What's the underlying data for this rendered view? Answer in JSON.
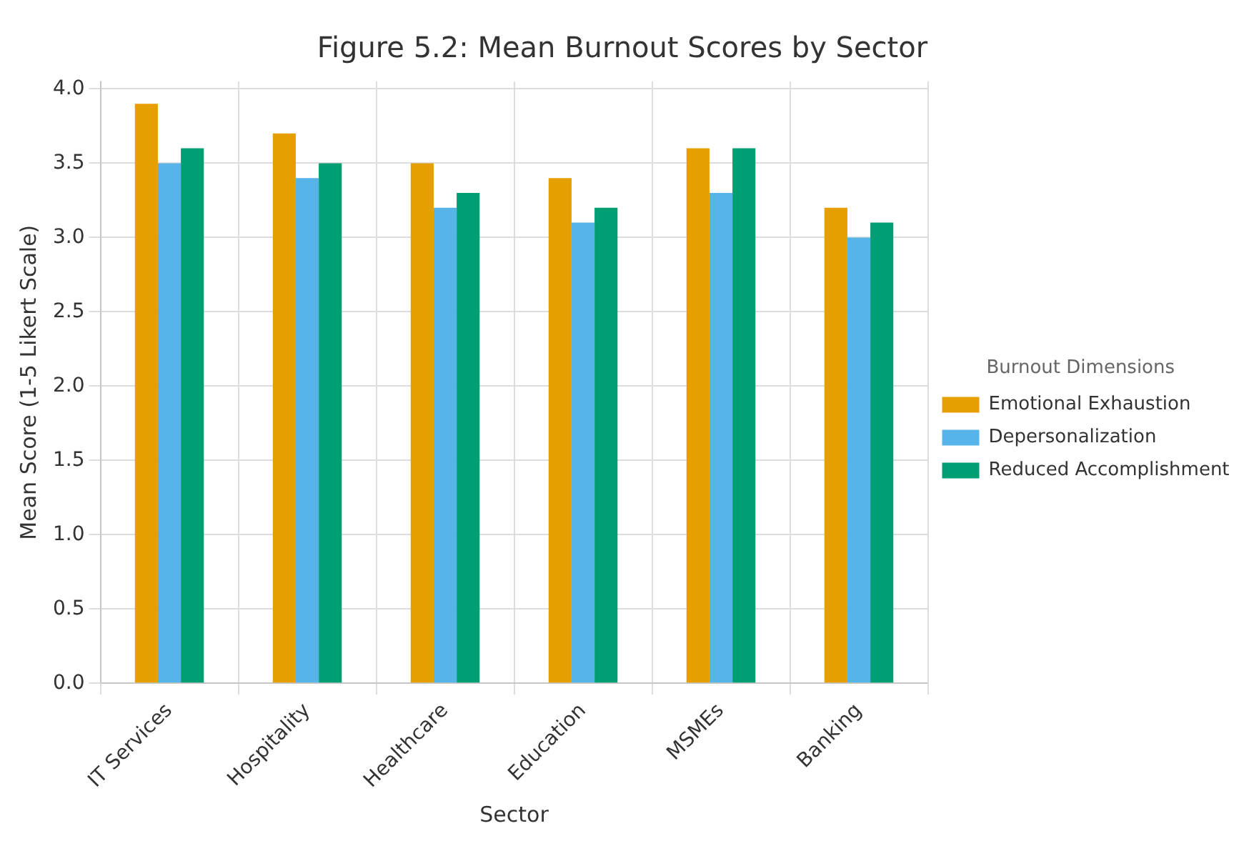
{
  "chart_data": {
    "type": "bar",
    "title": "Figure 5.2: Mean Burnout Scores by Sector",
    "xlabel": "Sector",
    "ylabel": "Mean Score (1-5 Likert Scale)",
    "legend_title": "Burnout Dimensions",
    "categories": [
      "IT Services",
      "Hospitality",
      "Healthcare",
      "Education",
      "MSMEs",
      "Banking"
    ],
    "series": [
      {
        "name": "Emotional Exhaustion",
        "color": "#e69f00",
        "values": [
          3.9,
          3.7,
          3.5,
          3.4,
          3.6,
          3.2
        ]
      },
      {
        "name": "Depersonalization",
        "color": "#56b4e9",
        "values": [
          3.5,
          3.4,
          3.2,
          3.1,
          3.3,
          3.0
        ]
      },
      {
        "name": "Reduced Accomplishment",
        "color": "#009e73",
        "values": [
          3.6,
          3.5,
          3.3,
          3.2,
          3.6,
          3.1
        ]
      }
    ],
    "ylim": [
      0,
      4.05
    ],
    "yticks": [
      {
        "value": 0,
        "label": "0.0"
      },
      0.5,
      {
        "value": 1,
        "label": "1.0"
      },
      1.5,
      {
        "value": 2,
        "label": "2.0"
      },
      2.5,
      {
        "value": 3,
        "label": "3.0"
      },
      3.5,
      {
        "value": 4,
        "label": "4.0"
      }
    ],
    "grid": true,
    "legend": "right"
  }
}
